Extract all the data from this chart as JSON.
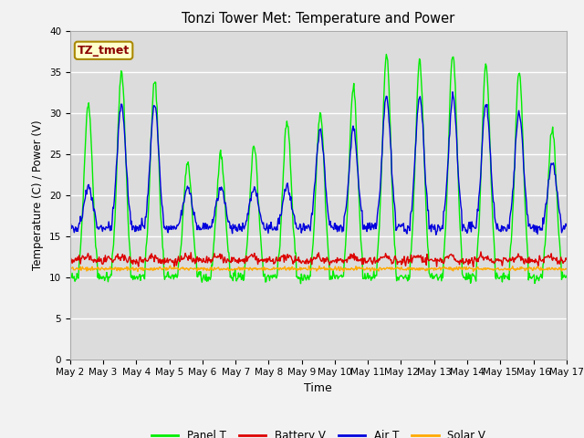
{
  "title": "Tonzi Tower Met: Temperature and Power",
  "xlabel": "Time",
  "ylabel": "Temperature (C) / Power (V)",
  "annotation": "TZ_tmet",
  "ylim": [
    0,
    40
  ],
  "yticks": [
    0,
    5,
    10,
    15,
    20,
    25,
    30,
    35,
    40
  ],
  "x_labels": [
    "May 2",
    "May 3",
    "May 4",
    "May 5",
    "May 6",
    "May 7",
    "May 8",
    "May 9",
    "May 10",
    "May 11",
    "May 12",
    "May 13",
    "May 14",
    "May 15",
    "May 16",
    "May 17"
  ],
  "bg_color": "#dcdcdc",
  "panel_color": "#00ee00",
  "battery_color": "#dd0000",
  "air_color": "#0000dd",
  "solar_color": "#ffaa00",
  "legend_entries": [
    "Panel T",
    "Battery V",
    "Air T",
    "Solar V"
  ],
  "n_days": 15,
  "pts_per_day": 48,
  "figsize": [
    6.4,
    4.8
  ],
  "dpi": 100
}
